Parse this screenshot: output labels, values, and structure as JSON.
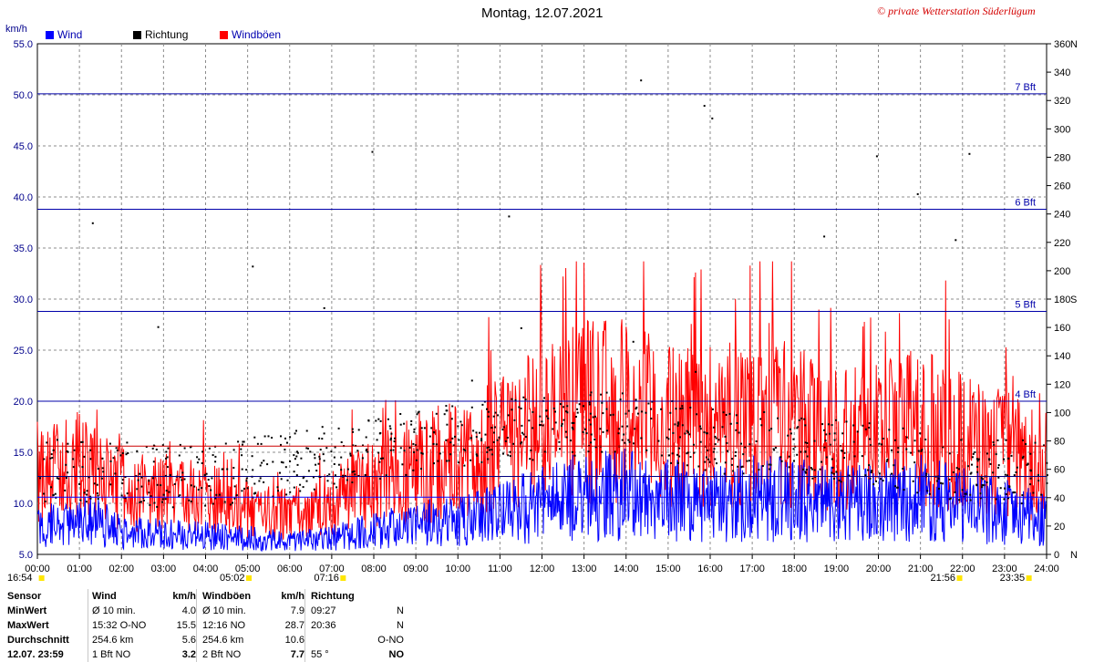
{
  "header": {
    "title": "Montag, 12.07.2021",
    "copyright": "© private Wetterstation Süderlügum",
    "unit_left": "km/h",
    "legend": [
      {
        "label": "Wind",
        "color": "#0000ff"
      },
      {
        "label": "Richtung",
        "color": "#000000"
      },
      {
        "label": "Windböen",
        "color": "#ff0000"
      }
    ]
  },
  "chart_data": {
    "type": "line",
    "title": "Montag, 12.07.2021",
    "x_ticks": [
      "00:00",
      "01:00",
      "02:00",
      "03:00",
      "04:00",
      "05:00",
      "06:00",
      "07:00",
      "08:00",
      "09:00",
      "10:00",
      "11:00",
      "12:00",
      "13:00",
      "14:00",
      "15:00",
      "16:00",
      "17:00",
      "18:00",
      "19:00",
      "20:00",
      "21:00",
      "22:00",
      "23:00",
      "24:00"
    ],
    "y_left": {
      "label": "km/h",
      "range": [
        5,
        55
      ],
      "ticks": [
        "5.0",
        "10.0",
        "15.0",
        "20.0",
        "25.0",
        "30.0",
        "35.0",
        "40.0",
        "45.0",
        "50.0",
        "55.0"
      ]
    },
    "y_right": {
      "range": [
        0,
        360
      ],
      "ticks": [
        "0",
        "20",
        "40",
        "60",
        "80",
        "100",
        "120",
        "140",
        "160",
        "180",
        "200",
        "220",
        "240",
        "260",
        "280",
        "300",
        "320",
        "340",
        "360"
      ],
      "compass": [
        {
          "deg": 0,
          "label": "N"
        },
        {
          "deg": 180,
          "label": "S"
        },
        {
          "deg": 360,
          "label": "N"
        }
      ]
    },
    "grid": true,
    "beaufort_lines": [
      {
        "label": "4 Bft",
        "kmh": 20
      },
      {
        "label": "5 Bft",
        "kmh": 28.8
      },
      {
        "label": "6 Bft",
        "kmh": 38.8
      },
      {
        "label": "7 Bft",
        "kmh": 50.1
      }
    ],
    "avg_lines": {
      "wind": 5.6,
      "gust": 10.6
    },
    "direction_avg_deg": 55,
    "sun_markers": [
      {
        "time": "16:54",
        "hour": 0.1
      },
      {
        "time": "05:02",
        "hour": 5.03
      },
      {
        "time": "07:16",
        "hour": 7.27
      },
      {
        "time": "21:56",
        "hour": 21.93
      },
      {
        "time": "23:35",
        "hour": 23.58
      }
    ],
    "series": [
      {
        "name": "Wind",
        "color": "#0000ff",
        "profile": [
          [
            0,
            2.8
          ],
          [
            1,
            4.2
          ],
          [
            2,
            2.5
          ],
          [
            3,
            2.2
          ],
          [
            4,
            2.0
          ],
          [
            5,
            1.8
          ],
          [
            6,
            1.4
          ],
          [
            7,
            1.8
          ],
          [
            8,
            2.6
          ],
          [
            9,
            3.3
          ],
          [
            10,
            3.6
          ],
          [
            11,
            4.4
          ],
          [
            12,
            5.6
          ],
          [
            13,
            6.4
          ],
          [
            14,
            6.6
          ],
          [
            15,
            6.0
          ],
          [
            16,
            5.4
          ],
          [
            17,
            6.1
          ],
          [
            18,
            6.0
          ],
          [
            19,
            5.4
          ],
          [
            20,
            5.6
          ],
          [
            21,
            6.2
          ],
          [
            22,
            5.3
          ],
          [
            23,
            4.6
          ],
          [
            24,
            3.9
          ]
        ],
        "avg": 5.6,
        "max": 15.5
      },
      {
        "name": "Windböen",
        "color": "#ff0000",
        "profile": [
          [
            0,
            7.5
          ],
          [
            1,
            8.5
          ],
          [
            2,
            6.5
          ],
          [
            3,
            6
          ],
          [
            4,
            5.5
          ],
          [
            5,
            4.5
          ],
          [
            6,
            4
          ],
          [
            7,
            5
          ],
          [
            8,
            7
          ],
          [
            9,
            8.5
          ],
          [
            10,
            9
          ],
          [
            11,
            10.5
          ],
          [
            12,
            12.5
          ],
          [
            13,
            14
          ],
          [
            14,
            14
          ],
          [
            15,
            12.5
          ],
          [
            16,
            12
          ],
          [
            17,
            13.5
          ],
          [
            18,
            12.5
          ],
          [
            19,
            11.5
          ],
          [
            20,
            12
          ],
          [
            21,
            12.5
          ],
          [
            22,
            11
          ],
          [
            23,
            10
          ],
          [
            24,
            8
          ]
        ],
        "avg": 10.6,
        "max": 28.7
      },
      {
        "name": "Richtung",
        "color": "#000000",
        "profile": [
          [
            0,
            60
          ],
          [
            4,
            55
          ],
          [
            8,
            75
          ],
          [
            10,
            85
          ],
          [
            12,
            90
          ],
          [
            14,
            95
          ],
          [
            16,
            80
          ],
          [
            18,
            78
          ],
          [
            20,
            70
          ],
          [
            22,
            60
          ],
          [
            24,
            58
          ]
        ],
        "avg_deg": 55
      }
    ]
  },
  "stats": {
    "headers": {
      "sensor": "Sensor",
      "wind": "Wind",
      "kmh": "km/h",
      "gust": "Windböen",
      "kmh2": "km/h",
      "direction": "Richtung"
    },
    "rows": [
      {
        "label": "MinWert",
        "w_time": "Ø 10 min.",
        "w_dir": "",
        "w_val": "4.0",
        "g_time": "Ø 10 min.",
        "g_dir": "",
        "g_val": "7.9",
        "r_time": "09:27",
        "r_dir": "N"
      },
      {
        "label": "MaxWert",
        "w_time": "15:32",
        "w_dir": "O-NO",
        "w_val": "15.5",
        "g_time": "12:16",
        "g_dir": "NO",
        "g_val": "28.7",
        "r_time": "20:36",
        "r_dir": "N"
      },
      {
        "label": "Durchschnitt",
        "w_time": "254.6 km",
        "w_dir": "",
        "w_val": "5.6",
        "g_time": "254.6 km",
        "g_dir": "",
        "g_val": "10.6",
        "r_time": "",
        "r_dir": "O-NO"
      },
      {
        "label": "12.07. 23:59",
        "w_time": "1 Bft NO",
        "w_dir": "",
        "w_val": "3.2",
        "g_time": "2 Bft NO",
        "g_dir": "",
        "g_val": "7.7",
        "r_time": "55 °",
        "r_dir": "NO"
      }
    ]
  }
}
